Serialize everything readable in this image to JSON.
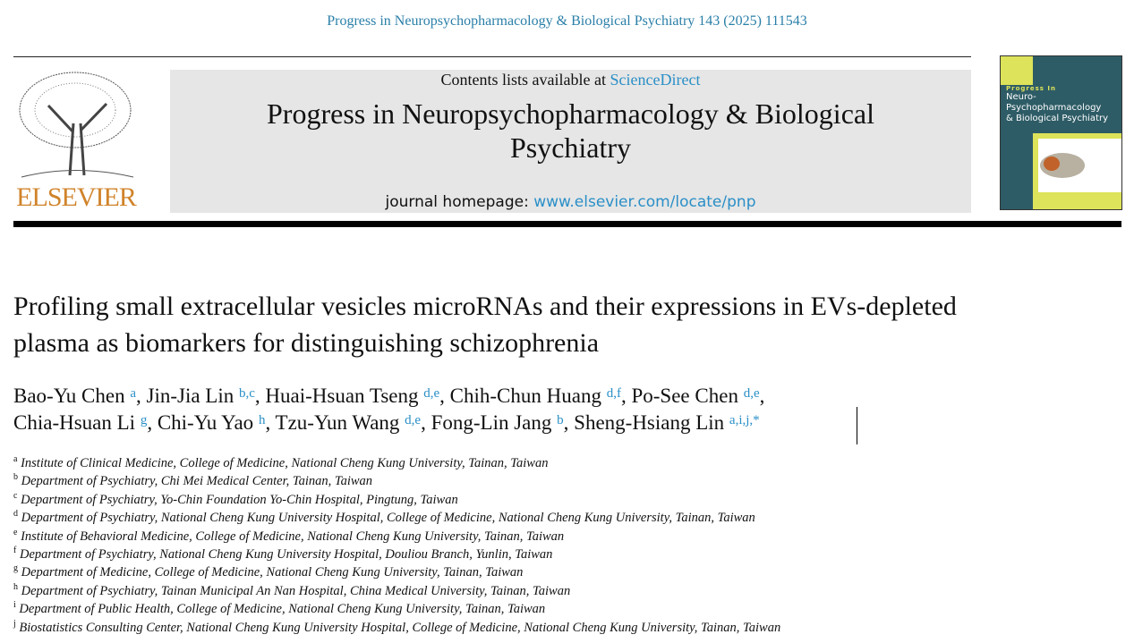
{
  "citation": "Progress in Neuropsychopharmacology & Biological Psychiatry 143 (2025) 111543",
  "publisher": {
    "logo_text": "ELSEVIER"
  },
  "banner": {
    "contents_prefix": "Contents lists available at ",
    "contents_link": "ScienceDirect",
    "journal_title": "Progress in Neuropsychopharmacology & Biological Psychiatry",
    "homepage_prefix": "journal homepage: ",
    "homepage_link": "www.elsevier.com/locate/pnp"
  },
  "cover": {
    "line1": "Progress In",
    "line2": "Neuro-Psychopharmacology",
    "line3": "& Biological Psychiatry"
  },
  "article": {
    "title": "Profiling small extracellular vesicles microRNAs and their expressions in EVs-depleted plasma as biomarkers for distinguishing schizophrenia",
    "authors": [
      {
        "name": "Bao-Yu Chen",
        "aff": "a"
      },
      {
        "name": "Jin-Jia Lin",
        "aff": "b,c"
      },
      {
        "name": "Huai-Hsuan Tseng",
        "aff": "d,e"
      },
      {
        "name": "Chih-Chun Huang",
        "aff": "d,f"
      },
      {
        "name": "Po-See Chen",
        "aff": "d,e"
      },
      {
        "name": "Chia-Hsuan Li",
        "aff": "g"
      },
      {
        "name": "Chi-Yu Yao",
        "aff": "h"
      },
      {
        "name": "Tzu-Yun Wang",
        "aff": "d,e"
      },
      {
        "name": "Fong-Lin Jang",
        "aff": "b"
      },
      {
        "name": "Sheng-Hsiang Lin",
        "aff": "a,i,j,*"
      }
    ],
    "affiliations": [
      {
        "key": "a",
        "text": "Institute of Clinical Medicine, College of Medicine, National Cheng Kung University, Tainan, Taiwan"
      },
      {
        "key": "b",
        "text": "Department of Psychiatry, Chi Mei Medical Center, Tainan, Taiwan"
      },
      {
        "key": "c",
        "text": "Department of Psychiatry, Yo-Chin Foundation Yo-Chin Hospital, Pingtung, Taiwan"
      },
      {
        "key": "d",
        "text": "Department of Psychiatry, National Cheng Kung University Hospital, College of Medicine, National Cheng Kung University, Tainan, Taiwan"
      },
      {
        "key": "e",
        "text": "Institute of Behavioral Medicine, College of Medicine, National Cheng Kung University, Tainan, Taiwan"
      },
      {
        "key": "f",
        "text": "Department of Psychiatry, National Cheng Kung University Hospital, Douliou Branch, Yunlin, Taiwan"
      },
      {
        "key": "g",
        "text": "Department of Medicine, College of Medicine, National Cheng Kung University, Tainan, Taiwan"
      },
      {
        "key": "h",
        "text": "Department of Psychiatry, Tainan Municipal An Nan Hospital, China Medical University, Tainan, Taiwan"
      },
      {
        "key": "i",
        "text": "Department of Public Health, College of Medicine, National Cheng Kung University, Tainan, Taiwan"
      },
      {
        "key": "j",
        "text": "Biostatistics Consulting Center, National Cheng Kung University Hospital, College of Medicine, National Cheng Kung University, Tainan, Taiwan"
      }
    ]
  },
  "colors": {
    "link": "#2a8fc7",
    "elsevier_orange": "#d0832a",
    "banner_gray": "#e6e6e6",
    "cover_teal": "#2e5c66",
    "cover_yellow": "#dde35a"
  }
}
